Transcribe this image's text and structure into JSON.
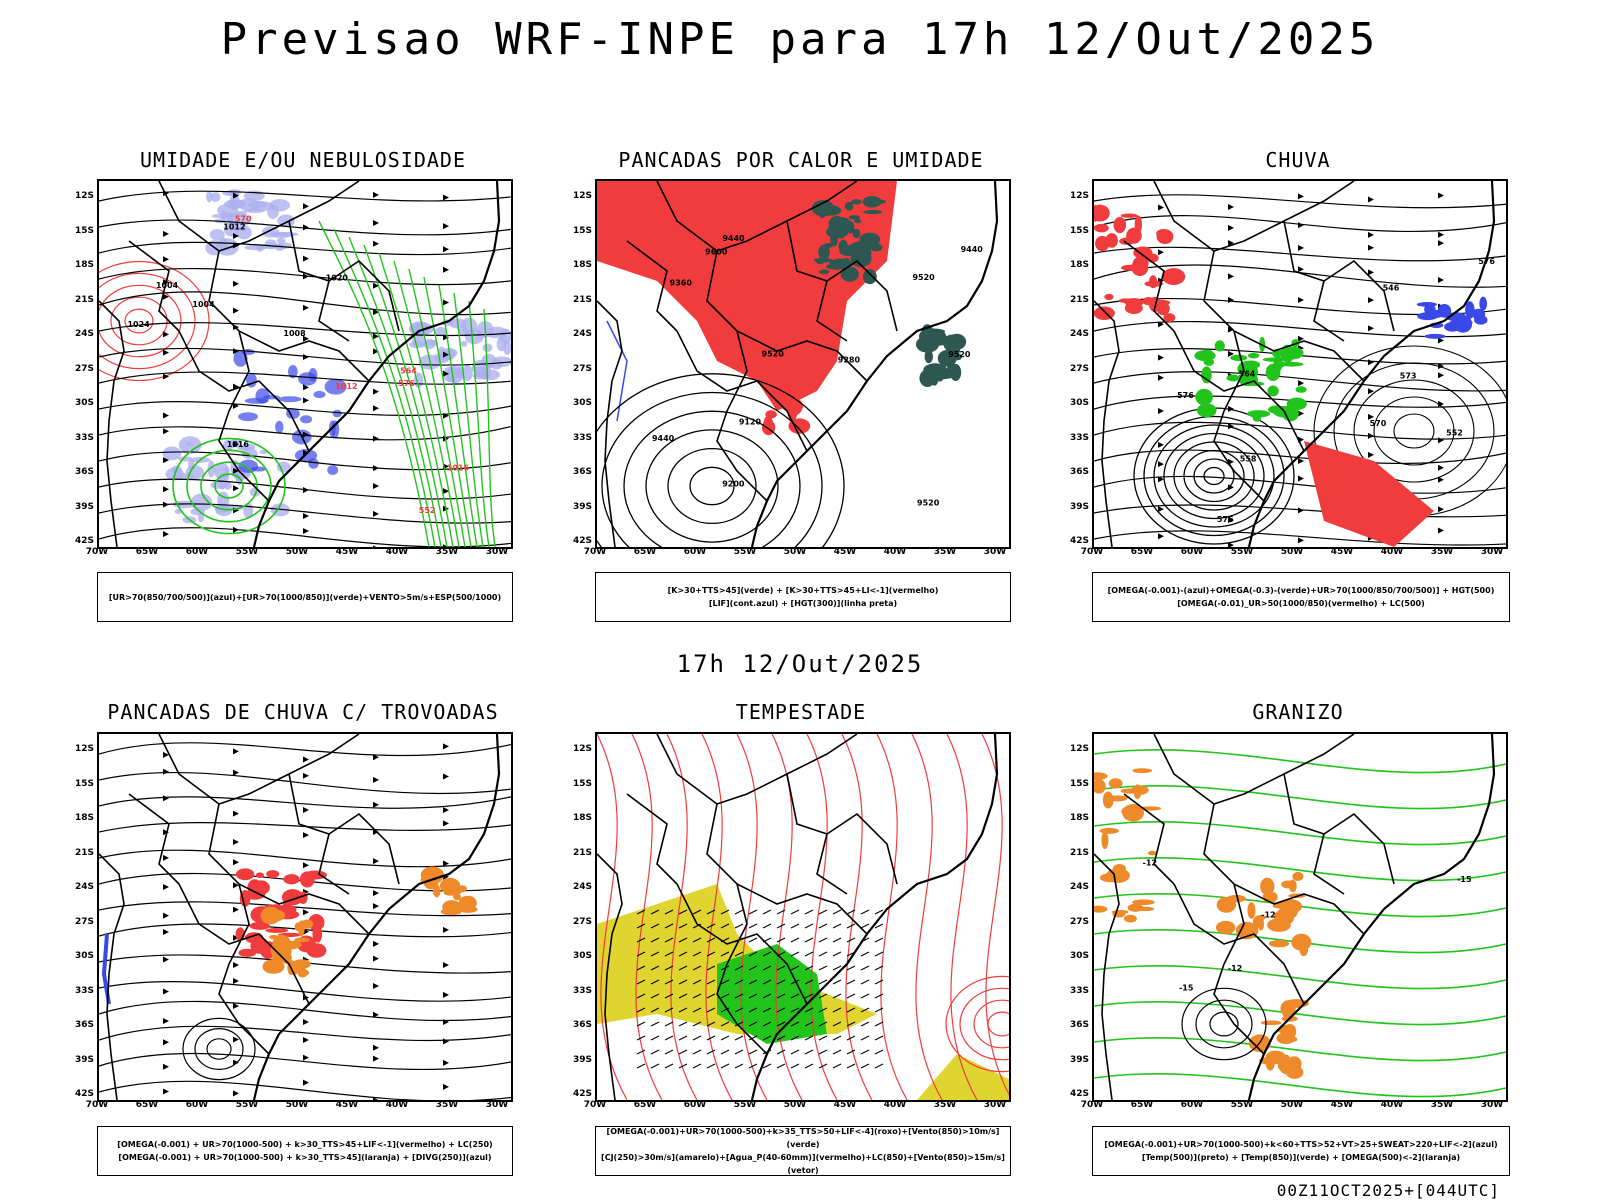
{
  "title": "Previsao WRF-INPE  para 17h 12/Out/2025",
  "mid_title": "17h 12/Out/2025",
  "footer": "00Z11OCT2025+[044UTC]",
  "axes": {
    "lat_ticks": [
      "12S",
      "15S",
      "18S",
      "21S",
      "24S",
      "27S",
      "30S",
      "33S",
      "36S",
      "39S",
      "42S"
    ],
    "lon_ticks": [
      "70W",
      "65W",
      "60W",
      "55W",
      "50W",
      "45W",
      "40W",
      "35W",
      "30W"
    ]
  },
  "colors": {
    "blue": "#3a48e8",
    "green": "#22c41c",
    "red": "#f03c3c",
    "dark_teal": "#2f5752",
    "lavender": "#aeb0f0",
    "yellow": "#e0d430",
    "orange": "#ee8a2a"
  },
  "panels": [
    {
      "title": "UMIDADE E/OU NEBULOSIDADE",
      "legend": [
        "[UR>70(850/700/500)](azul)+[UR>70(1000/850)](verde)+VENTO>5m/s+ESP(500/1000)"
      ],
      "labels": [
        "1004",
        "1004",
        "1008",
        "1012",
        "1016",
        "1020",
        "1024",
        "1012",
        "1016",
        "576",
        "570",
        "564",
        "552"
      ]
    },
    {
      "title": "PANCADAS POR CALOR E UMIDADE",
      "legend": [
        "[K>30+TTS>45](verde) + [K>30+TTS>45+LI<-1](vermelho)",
        "[LIF](cont.azul) + [HGT(300)](linha preta)"
      ],
      "labels": [
        "9600",
        "9520",
        "9520",
        "9520",
        "9440",
        "9360",
        "9280",
        "9200",
        "9120",
        "9440",
        "9520",
        "9440"
      ]
    },
    {
      "title": "CHUVA",
      "legend": [
        "[OMEGA(-0.001)-(azul)+OMEGA(-0.3)-(verde)+UR>70(1000/850/700/500)] + HGT(500)",
        "[OMEGA(-0.01)_UR>50(1000/850)(vermelho) + LC(500)"
      ],
      "labels": [
        "576",
        "570",
        "564",
        "558",
        "552",
        "546",
        "576",
        "576",
        "573"
      ]
    },
    {
      "title": "PANCADAS DE CHUVA C/ TROVOADAS",
      "legend": [
        "[OMEGA(-0.001) + UR>70(1000-500) + k>30_TTS>45+LIF<-1](vermelho) + LC(250)",
        "[OMEGA(-0.001) + UR>70(1000-500) + k>30_TTS>45](laranja) + [DIVG(250)](azul)"
      ],
      "labels": []
    },
    {
      "title": "TEMPESTADE",
      "legend": [
        "[OMEGA(-0.001)+UR>70(1000-500)+k>35_TTS>50+LIF<-4](roxo)+[Vento(850)>10m/s](verde)",
        "[CJ(250)>30m/s](amarelo)+[Agua_P(40-60mm)](vermelho)+LC(850)+[Vento(850)>15m/s](vetor)"
      ],
      "labels": []
    },
    {
      "title": "GRANIZO",
      "legend": [
        "[OMEGA(-0.001)+UR>70(1000-500)+k<60+TTS>52+VT>25+SWEAT>220+LIF<-2](azul)",
        "[Temp(500)](preto) + [Temp(850)](verde) + [OMEGA(500)<-2](laranja)"
      ],
      "labels": [
        "-12",
        "-12",
        "-15",
        "-15",
        "-12"
      ]
    }
  ]
}
